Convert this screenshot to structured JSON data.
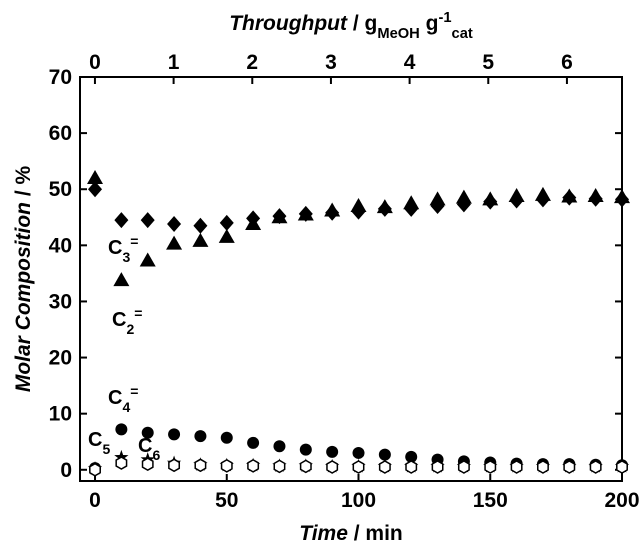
{
  "chart_data": {
    "type": "scatter",
    "xlabel": [
      {
        "text": "Time",
        "style": "italic"
      },
      {
        "text": " / min"
      }
    ],
    "ylabel": [
      {
        "text": "Molar Composition",
        "style": "italic"
      },
      {
        "text": " / %"
      }
    ],
    "x2label": [
      {
        "text": "Throughput",
        "style": "italic"
      },
      {
        "text": " / g"
      },
      {
        "text": "MeOH",
        "style": "sub"
      },
      {
        "text": " g"
      },
      {
        "text": "-1",
        "style": "sup"
      },
      {
        "text": "cat",
        "style": "sub"
      }
    ],
    "x": [
      0,
      10,
      20,
      30,
      40,
      50,
      60,
      70,
      80,
      90,
      100,
      110,
      120,
      130,
      140,
      150,
      160,
      170,
      180,
      190,
      200
    ],
    "xlim": [
      -5.7,
      200
    ],
    "xticks": [
      0,
      50,
      100,
      150,
      200
    ],
    "ylim": [
      -2,
      70
    ],
    "yticks": [
      0,
      10,
      20,
      30,
      40,
      50,
      60,
      70
    ],
    "x2lim": [
      -0.19,
      6.7
    ],
    "x2ticks": [
      0,
      1,
      2,
      3,
      4,
      5,
      6
    ],
    "series": [
      {
        "label": [
          {
            "text": "C"
          },
          {
            "text": "2",
            "style": "sub"
          },
          {
            "text": "=",
            "style": "sup"
          }
        ],
        "marker": "triangle",
        "color": "#000000",
        "values": [
          52,
          33.8,
          37.3,
          40.3,
          40.8,
          41.5,
          43.8,
          45,
          45.5,
          46.2,
          47,
          46.8,
          47.5,
          48.2,
          48.5,
          48.2,
          48.8,
          49,
          48.7,
          48.8,
          48.6
        ]
      },
      {
        "label": [
          {
            "text": "C"
          },
          {
            "text": "3",
            "style": "sub"
          },
          {
            "text": "=",
            "style": "sup"
          }
        ],
        "marker": "diamond",
        "color": "#000000",
        "values": [
          50,
          44.5,
          44.5,
          43.8,
          43.5,
          44,
          44.8,
          45.2,
          45.6,
          45.8,
          46,
          46.5,
          46.5,
          47,
          47.3,
          47.8,
          48,
          48.2,
          48.5,
          48.3,
          48.2
        ]
      },
      {
        "label": [
          {
            "text": "C"
          },
          {
            "text": "4",
            "style": "sub"
          },
          {
            "text": "=",
            "style": "sup"
          }
        ],
        "marker": "circle",
        "color": "#000000",
        "values": [
          0.3,
          7.2,
          6.6,
          6.3,
          6,
          5.7,
          4.8,
          4.2,
          3.6,
          3.2,
          3,
          2.7,
          2.3,
          1.8,
          1.5,
          1.3,
          1.1,
          1,
          1,
          0.9,
          0.8
        ]
      },
      {
        "label": [
          {
            "text": "C"
          },
          {
            "text": "5",
            "style": "sub"
          }
        ],
        "marker": "star",
        "color": "#000000",
        "values": [
          0.2,
          2.2,
          1.8,
          1.2,
          0.9,
          0.8,
          0.8,
          0.7,
          0.7,
          0.6,
          0.6,
          0.6,
          0.6,
          0.6,
          0.6,
          0.6,
          0.6,
          0.6,
          0.6,
          0.6,
          0.6
        ]
      },
      {
        "label": [
          {
            "text": "C"
          },
          {
            "text": "6",
            "style": "sub"
          }
        ],
        "marker": "hexagon",
        "color": "#000000",
        "values": [
          0,
          1.2,
          1,
          0.8,
          0.8,
          0.7,
          0.7,
          0.6,
          0.6,
          0.5,
          0.5,
          0.5,
          0.5,
          0.5,
          0.5,
          0.5,
          0.5,
          0.5,
          0.5,
          0.5,
          0.5
        ]
      }
    ]
  }
}
